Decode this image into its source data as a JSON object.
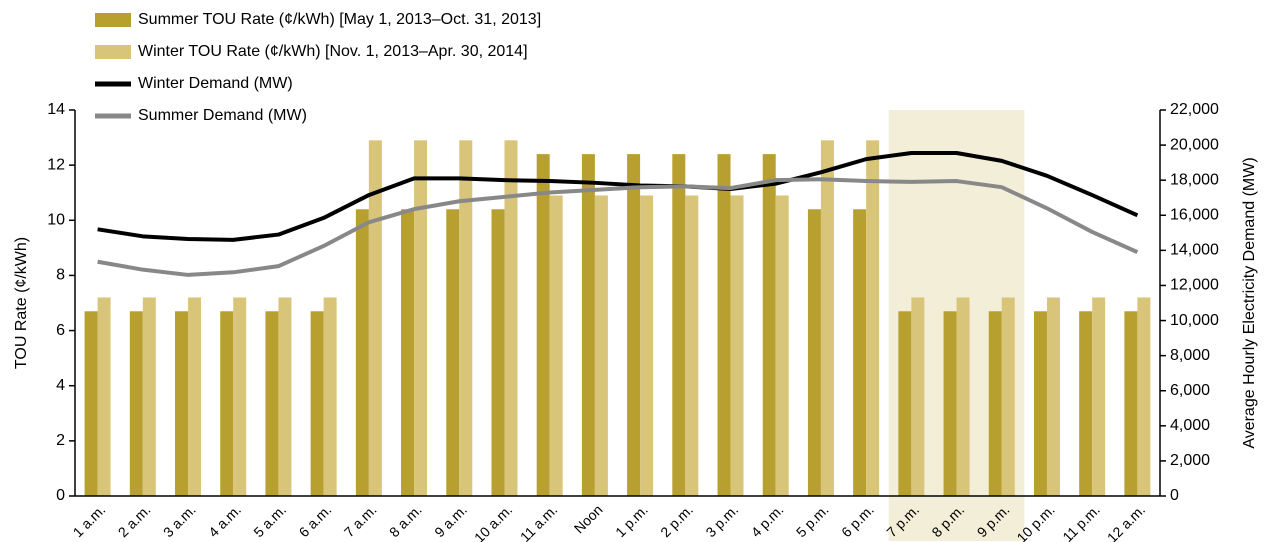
{
  "chart_data": {
    "type": "bar",
    "categories": [
      "1 a.m.",
      "2 a.m.",
      "3 a.m.",
      "4 a.m.",
      "5 a.m.",
      "6 a.m.",
      "7 a.m.",
      "8 a.m.",
      "9 a.m.",
      "10 a.m.",
      "11 a.m.",
      "Noon",
      "1 p.m.",
      "2 p.m.",
      "3 p.m.",
      "4 p.m.",
      "5 p.m.",
      "6 p.m.",
      "7 p.m.",
      "8 p.m.",
      "9 p.m.",
      "10 p.m.",
      "11 p.m.",
      "12 a.m."
    ],
    "y_label": "TOU Rate (¢/kWh)",
    "y2_label": "Average Hourly Electricity Demand (MW)",
    "ylim": [
      0,
      14
    ],
    "yticks": [
      0,
      2,
      4,
      6,
      8,
      10,
      12,
      14
    ],
    "y2lim": [
      0,
      22000
    ],
    "y2ticks": [
      0,
      {
        "value": 2000,
        "label": "2,000"
      },
      {
        "value": 4000,
        "label": "4,000"
      },
      {
        "value": 6000,
        "label": "6,000"
      },
      {
        "value": 8000,
        "label": "8,000"
      },
      {
        "value": 10000,
        "label": "10,000"
      },
      {
        "value": 12000,
        "label": "12,000"
      },
      {
        "value": 14000,
        "label": "14,000"
      },
      {
        "value": 16000,
        "label": "16,000"
      },
      {
        "value": 18000,
        "label": "18,000"
      },
      {
        "value": 20000,
        "label": "20,000"
      },
      {
        "value": 22000,
        "label": "22,000"
      }
    ],
    "series": [
      {
        "name": "Summer TOU Rate (¢/kWh) [May 1, 2013–Oct. 31, 2013]",
        "type": "bar",
        "color": "#b8a030",
        "values": [
          6.7,
          6.7,
          6.7,
          6.7,
          6.7,
          6.7,
          10.4,
          10.4,
          10.4,
          10.4,
          12.4,
          12.4,
          12.4,
          12.4,
          12.4,
          12.4,
          10.4,
          10.4,
          6.7,
          6.7,
          6.7,
          6.7,
          6.7,
          6.7
        ]
      },
      {
        "name": "Winter TOU Rate (¢/kWh) [Nov. 1, 2013–Apr. 30, 2014]",
        "type": "bar",
        "color": "#d9c57a",
        "values": [
          7.2,
          7.2,
          7.2,
          7.2,
          7.2,
          7.2,
          12.9,
          12.9,
          12.9,
          12.9,
          10.9,
          10.9,
          10.9,
          10.9,
          10.9,
          10.9,
          12.9,
          12.9,
          7.2,
          7.2,
          7.2,
          7.2,
          7.2,
          7.2
        ]
      },
      {
        "name": "Winter Demand (MW)",
        "type": "line",
        "axis": "y2",
        "color": "#000000",
        "values": [
          15200,
          14800,
          14650,
          14600,
          14900,
          15850,
          17150,
          18100,
          18100,
          18000,
          17950,
          17850,
          17700,
          17650,
          17500,
          17800,
          18450,
          19200,
          19550,
          19550,
          19100,
          18250,
          17150,
          16000
        ]
      },
      {
        "name": "Summer Demand (MW)",
        "type": "line",
        "axis": "y2",
        "color": "#888888",
        "values": [
          13350,
          12900,
          12600,
          12750,
          13100,
          14250,
          15600,
          16350,
          16800,
          17050,
          17300,
          17450,
          17600,
          17650,
          17550,
          18000,
          18050,
          17950,
          17900,
          17950,
          17600,
          16400,
          15050,
          13900
        ]
      }
    ]
  }
}
